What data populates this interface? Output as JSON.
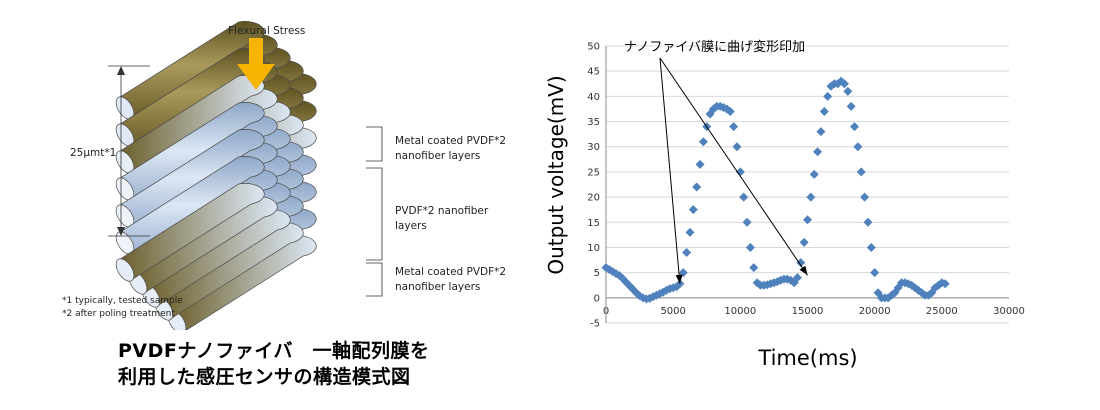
{
  "diagram": {
    "force_label": "Flexural Stress",
    "thickness_label": "25μmt*1",
    "layer_top_line1": "Metal coated PVDF*2",
    "layer_top_line2": "nanofiber layers",
    "layer_mid_line1": "PVDF*2 nanofiber",
    "layer_mid_line2": "layers",
    "layer_bot_line1": "Metal coated PVDF*2",
    "layer_bot_line2": "nanofiber layers",
    "note1": "*1 typically, tested sample",
    "note2": "*2 after poling treatment",
    "colors": {
      "metal": "#7a6a2e",
      "pvdf": "#b9cde6",
      "arrow": "#f5b400"
    }
  },
  "caption": {
    "line1": "PVDFナノファイバ　一軸配列膜を",
    "line2": "利用した感圧センサの構造模式図"
  },
  "chart_data": {
    "type": "scatter",
    "title": "",
    "xlabel": "Time(ms)",
    "ylabel": "Output voltage(mV)",
    "xlim": [
      0,
      30000
    ],
    "ylim": [
      -5,
      50
    ],
    "xticks": [
      0,
      5000,
      10000,
      15000,
      20000,
      25000,
      30000
    ],
    "yticks": [
      -5,
      0,
      5,
      10,
      15,
      20,
      25,
      30,
      35,
      40,
      45,
      50
    ],
    "grid": "horizontal",
    "legend": "none",
    "annotation": "ナノファイバ膜に曲げ変形印加",
    "annotation_targets": [
      [
        5500,
        2
      ],
      [
        15000,
        3.7
      ]
    ],
    "marker_color": "#4f81bd",
    "series": [
      {
        "x": [
          0,
          250,
          500,
          750,
          1000,
          1250,
          1500,
          1750,
          2000,
          2250,
          2500,
          2750,
          3000,
          3250,
          3500,
          3750,
          4000,
          4250,
          4500,
          4750,
          5000,
          5250,
          5500,
          5750,
          6000,
          6250,
          6500,
          6750,
          7000,
          7250,
          7500,
          7750,
          8000,
          8250,
          8500,
          8750,
          9000,
          9250,
          9500,
          9750,
          10000,
          10250,
          10500,
          10750,
          11000,
          11250,
          11500,
          11750,
          12000,
          12250,
          12500,
          12750,
          13000,
          13250,
          13500,
          13750,
          14000,
          14250,
          14500,
          14750,
          15000,
          15250,
          15500,
          15750,
          16000,
          16250,
          16500,
          16750,
          17000,
          17250,
          17500,
          17750,
          18000,
          18250,
          18500,
          18750,
          19000,
          19250,
          19500,
          19750,
          20000,
          20250,
          20500,
          20750,
          21000,
          21250,
          21500,
          21750,
          22000,
          22250,
          22500,
          22750,
          23000,
          23250,
          23500,
          23750,
          24000,
          24250,
          24500,
          24750,
          25000,
          25250
        ],
        "y": [
          6,
          5.6,
          5.2,
          4.8,
          4.4,
          3.8,
          3.1,
          2.4,
          1.7,
          1.0,
          0.4,
          0.0,
          -0.2,
          -0.1,
          0.2,
          0.5,
          0.8,
          1.1,
          1.5,
          1.8,
          2.0,
          2.2,
          2.8,
          5,
          9,
          13,
          17.5,
          22,
          26.5,
          31,
          34,
          36.5,
          37.5,
          38,
          38,
          37.8,
          37.5,
          37,
          34,
          30,
          25,
          20,
          15,
          10,
          6,
          3,
          2.5,
          2.5,
          2.6,
          2.8,
          3,
          3.2,
          3.5,
          3.7,
          3.7,
          3.5,
          3,
          4,
          7,
          11,
          15.5,
          20,
          24.5,
          29,
          33,
          37,
          40,
          42,
          42.5,
          42.5,
          43,
          42.5,
          41,
          38,
          34,
          30,
          25,
          20,
          15,
          10,
          5,
          1,
          0,
          0,
          0,
          0.5,
          1,
          2,
          3,
          3,
          2.8,
          2.5,
          2,
          1.5,
          1,
          0.5,
          0.5,
          1,
          2,
          2.5,
          3,
          2.8
        ]
      }
    ]
  }
}
